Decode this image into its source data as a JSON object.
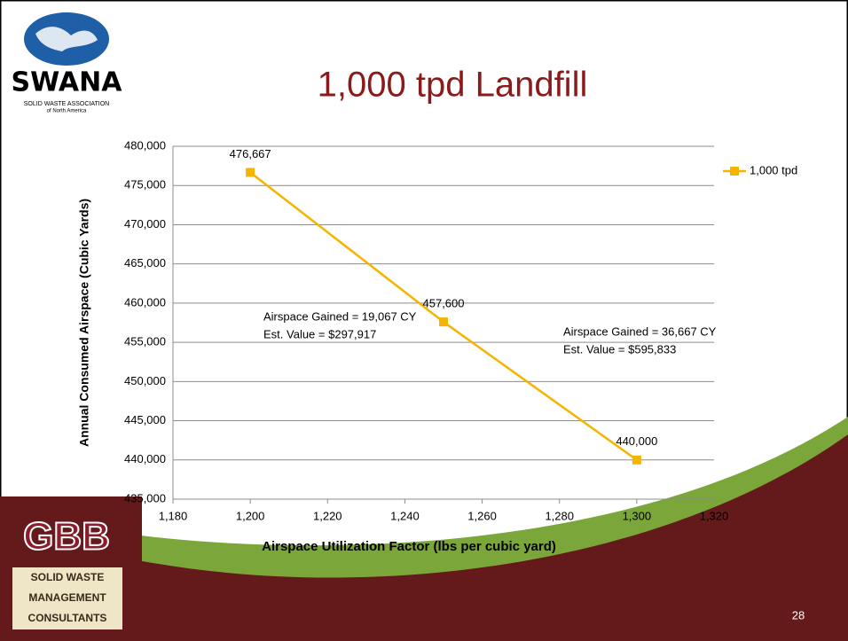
{
  "chart_data": {
    "type": "line",
    "title": "1,000 tpd Landfill",
    "x_label": "Airspace Utilization Factor  (lbs per cubic yard)",
    "y_label": "Annual Consumed Airspace (Cubic Yards)",
    "x": [
      1200,
      1250,
      1300
    ],
    "series": [
      {
        "name": "1,000 tpd",
        "color": "#f5b400",
        "values": [
          476667,
          457600,
          440000
        ],
        "value_labels": [
          "476,667",
          "457,600",
          "440,000"
        ]
      }
    ],
    "xlim": [
      1180,
      1320
    ],
    "xticks": [
      {
        "value": 1180,
        "label": "1,180"
      },
      {
        "value": 1200,
        "label": "1,200"
      },
      {
        "value": 1220,
        "label": "1,220"
      },
      {
        "value": 1240,
        "label": "1,240"
      },
      {
        "value": 1260,
        "label": "1,260"
      },
      {
        "value": 1280,
        "label": "1,280"
      },
      {
        "value": 1300,
        "label": "1,300"
      },
      {
        "value": 1320,
        "label": "1,320"
      }
    ],
    "ylim": [
      435000,
      480000
    ],
    "yticks": [
      {
        "value": 435000,
        "label": "435,000"
      },
      {
        "value": 440000,
        "label": "440,000"
      },
      {
        "value": 445000,
        "label": "445,000"
      },
      {
        "value": 450000,
        "label": "450,000"
      },
      {
        "value": 455000,
        "label": "455,000"
      },
      {
        "value": 460000,
        "label": "460,000"
      },
      {
        "value": 465000,
        "label": "465,000"
      },
      {
        "value": 470000,
        "label": "470,000"
      },
      {
        "value": 475000,
        "label": "475,000"
      },
      {
        "value": 480000,
        "label": "480,000"
      }
    ],
    "grid": true,
    "legend": "right",
    "annotations": [
      [
        "Airspace  Gained  =  19,067  CY",
        "Est. Value  =  $297,917"
      ],
      [
        "Airspace  Gained  =  36,667 CY",
        "Est. Value  =  $595,833"
      ]
    ]
  },
  "logos": {
    "swana": [
      "SWANA",
      "SOLID WASTE ASSOCIATION",
      "of North America"
    ],
    "gbb": [
      "GBB",
      "SOLID WASTE",
      "MANAGEMENT",
      "CONSULTANTS"
    ]
  },
  "page_number": "28"
}
